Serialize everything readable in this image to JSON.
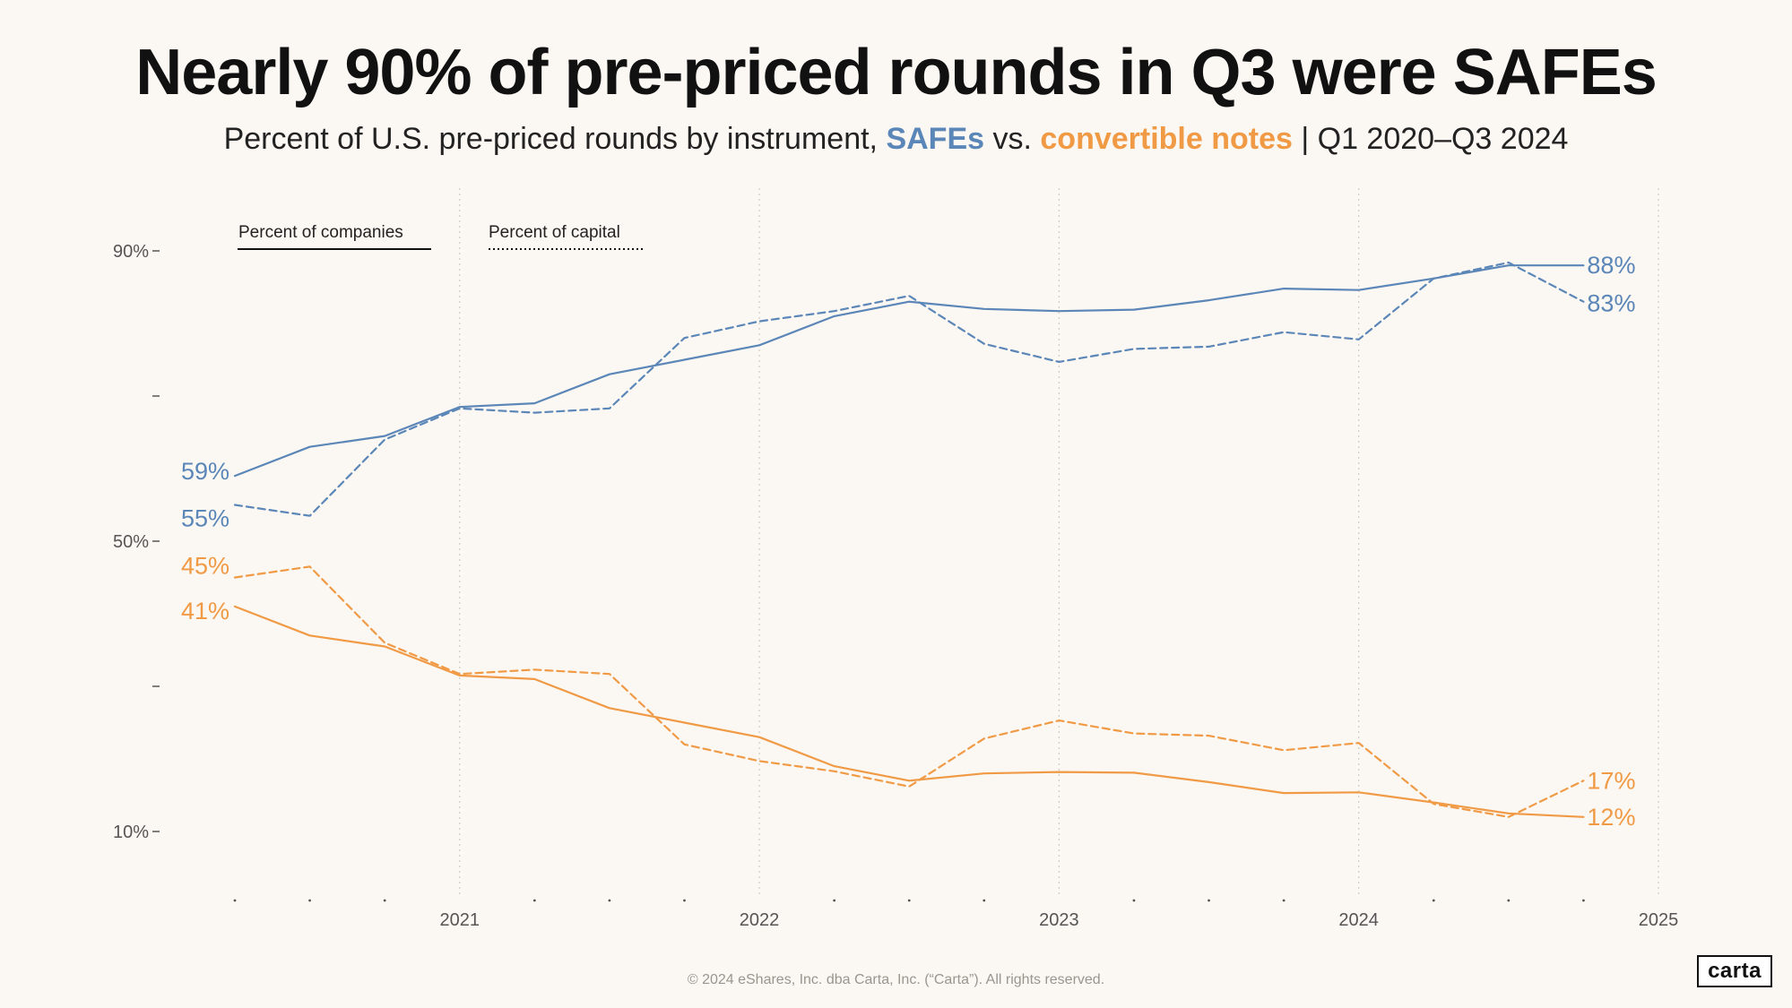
{
  "title": "Nearly 90% of pre-priced rounds in Q3 were SAFEs",
  "subtitle": {
    "prefix": "Percent of U.S. pre-priced rounds by instrument, ",
    "safes": "SAFEs",
    "vs": " vs. ",
    "notes": "convertible notes",
    "suffix": " | Q1 2020–Q3 2024"
  },
  "footer": "© 2024 eShares, Inc. dba Carta, Inc. (“Carta”). All rights reserved.",
  "logo": "carta",
  "colors": {
    "safes": "#5b86b8",
    "notes": "#f09a45",
    "axis": "#555555",
    "grid": "#cfcac4"
  },
  "chart_data": {
    "type": "line",
    "title": "Nearly 90% of pre-priced rounds in Q3 were SAFEs",
    "xlabel": "",
    "ylabel": "",
    "x": [
      "2020 Q1",
      "2020 Q2",
      "2020 Q3",
      "2020 Q4",
      "2021 Q1",
      "2021 Q2",
      "2021 Q3",
      "2021 Q4",
      "2022 Q1",
      "2022 Q2",
      "2022 Q3",
      "2022 Q4",
      "2023 Q1",
      "2023 Q2",
      "2023 Q3",
      "2023 Q4",
      "2024 Q1",
      "2024 Q2",
      "2024 Q3"
    ],
    "x_numeric": [
      2020.25,
      2020.5,
      2020.75,
      2021.0,
      2021.25,
      2021.5,
      2021.75,
      2022.0,
      2022.25,
      2022.5,
      2022.75,
      2023.0,
      2023.25,
      2023.5,
      2023.75,
      2024.0,
      2024.25,
      2024.5,
      2024.75
    ],
    "xlim": [
      2020.25,
      2025
    ],
    "x_ticks": [
      {
        "value": 2021,
        "label": "2021"
      },
      {
        "value": 2022,
        "label": "2022"
      },
      {
        "value": 2023,
        "label": "2023"
      },
      {
        "value": 2024,
        "label": "2024"
      },
      {
        "value": 2025,
        "label": "2025"
      }
    ],
    "ylim": [
      10,
      90
    ],
    "y_ticks": [
      {
        "value": 90,
        "label": "90%"
      },
      {
        "value": 70,
        "label": ""
      },
      {
        "value": 50,
        "label": "50%"
      },
      {
        "value": 30,
        "label": ""
      },
      {
        "value": 10,
        "label": "10%"
      }
    ],
    "grid": "vertical dotted at year marks",
    "legend": {
      "companies": "Percent of companies",
      "capital": "Percent of capital"
    },
    "series": [
      {
        "name": "SAFEs – percent of companies",
        "instrument": "safes",
        "measure": "companies",
        "values": [
          59,
          63,
          64.5,
          68.5,
          69,
          73,
          75,
          77,
          81,
          83,
          82,
          81.7,
          81.9,
          83.2,
          84.8,
          84.6,
          86.2,
          88,
          88
        ],
        "start_label": "59%",
        "end_label": "88%"
      },
      {
        "name": "SAFEs – percent of capital",
        "instrument": "safes",
        "measure": "capital",
        "values": [
          55,
          53.5,
          64,
          68.3,
          67.7,
          68.3,
          78,
          80.3,
          81.7,
          83.8,
          77.2,
          74.7,
          76.5,
          76.8,
          78.8,
          77.8,
          86.2,
          88.4,
          83
        ],
        "start_label": "55%",
        "end_label": "83%"
      },
      {
        "name": "Convertible notes – percent of companies",
        "instrument": "notes",
        "measure": "companies",
        "values": [
          41,
          37,
          35.5,
          31.5,
          31,
          27,
          25,
          23,
          19,
          17,
          18,
          18.2,
          18.1,
          16.8,
          15.3,
          15.4,
          14,
          12.5,
          12
        ],
        "start_label": "41%",
        "end_label": "12%"
      },
      {
        "name": "Convertible notes – percent of capital",
        "instrument": "notes",
        "measure": "capital",
        "values": [
          45,
          46.5,
          36,
          31.7,
          32.3,
          31.7,
          22,
          19.7,
          18.3,
          16.2,
          22.8,
          25.3,
          23.5,
          23.2,
          21.2,
          22.2,
          13.8,
          12,
          17
        ],
        "start_label": "45%",
        "end_label": "17%"
      }
    ]
  }
}
